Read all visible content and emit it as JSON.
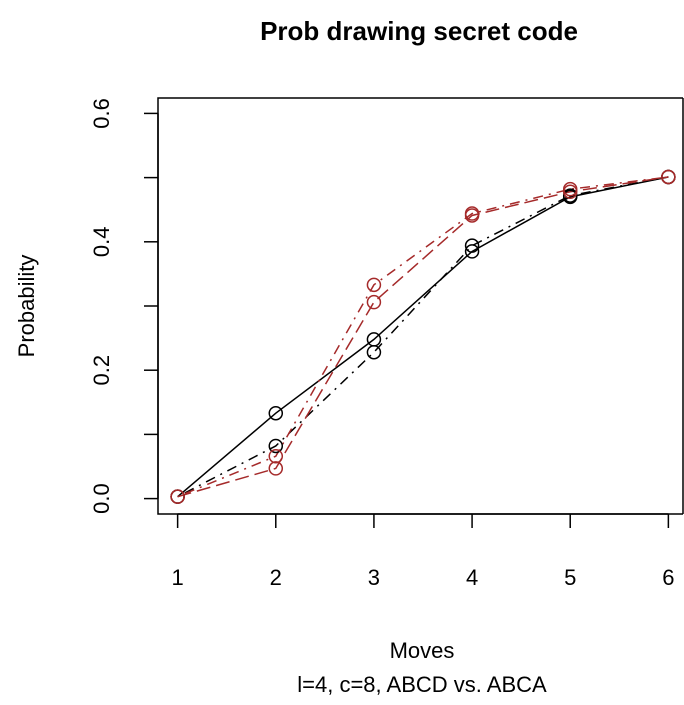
{
  "chart_data": {
    "type": "line",
    "title": "Prob drawing secret code",
    "xlabel": "Moves",
    "subtitle": "l=4, c=8, ABCD vs. ABCA",
    "ylabel": "Probability",
    "x": [
      1,
      2,
      3,
      4,
      5,
      6
    ],
    "series": [
      {
        "color": "#000000",
        "linestyle": "solid",
        "values": [
          0.003,
          0.133,
          0.248,
          0.385,
          0.47,
          0.501
        ]
      },
      {
        "color": "#000000",
        "linestyle": "dotdash",
        "values": [
          0.003,
          0.082,
          0.228,
          0.394,
          0.472,
          0.501
        ]
      },
      {
        "color": "#a52a2a",
        "linestyle": "longdash",
        "values": [
          0.003,
          0.047,
          0.306,
          0.441,
          0.478,
          0.501
        ]
      },
      {
        "color": "#a52a2a",
        "linestyle": "dotdash",
        "values": [
          0.003,
          0.066,
          0.333,
          0.444,
          0.482,
          0.501
        ]
      }
    ],
    "xlim": [
      0.8,
      6.2
    ],
    "xticks": [
      1,
      2,
      3,
      4,
      5,
      6
    ],
    "ylim": [
      -0.024,
      0.624
    ],
    "yticks": [
      {
        "value": 0,
        "label": "0.0"
      },
      {
        "value": 0.1,
        "label": null
      },
      0.2,
      {
        "value": 0.3,
        "label": null
      },
      0.4,
      {
        "value": 0.5,
        "label": null
      },
      0.6
    ],
    "markers": "open-circle"
  }
}
